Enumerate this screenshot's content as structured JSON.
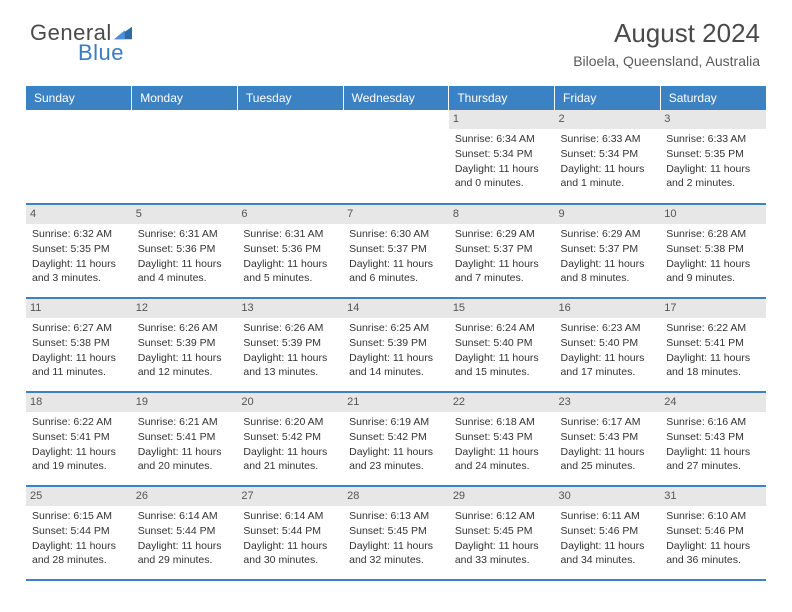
{
  "logo": {
    "textA": "General",
    "textB": "Blue"
  },
  "header": {
    "title": "August 2024",
    "location": "Biloela, Queensland, Australia"
  },
  "colors": {
    "header_bg": "#3b82c4",
    "header_fg": "#ffffff",
    "daynum_bg": "#e7e7e7",
    "rule": "#3b82c4",
    "text": "#333333"
  },
  "fonts": {
    "title_pt": 26,
    "subtitle_pt": 14,
    "th_pt": 12,
    "cell_pt": 10.5
  },
  "dayHeaders": [
    "Sunday",
    "Monday",
    "Tuesday",
    "Wednesday",
    "Thursday",
    "Friday",
    "Saturday"
  ],
  "weeks": [
    [
      {
        "n": "",
        "sr": "",
        "ss": "",
        "dl": ""
      },
      {
        "n": "",
        "sr": "",
        "ss": "",
        "dl": ""
      },
      {
        "n": "",
        "sr": "",
        "ss": "",
        "dl": ""
      },
      {
        "n": "",
        "sr": "",
        "ss": "",
        "dl": ""
      },
      {
        "n": "1",
        "sr": "Sunrise: 6:34 AM",
        "ss": "Sunset: 5:34 PM",
        "dl": "Daylight: 11 hours and 0 minutes."
      },
      {
        "n": "2",
        "sr": "Sunrise: 6:33 AM",
        "ss": "Sunset: 5:34 PM",
        "dl": "Daylight: 11 hours and 1 minute."
      },
      {
        "n": "3",
        "sr": "Sunrise: 6:33 AM",
        "ss": "Sunset: 5:35 PM",
        "dl": "Daylight: 11 hours and 2 minutes."
      }
    ],
    [
      {
        "n": "4",
        "sr": "Sunrise: 6:32 AM",
        "ss": "Sunset: 5:35 PM",
        "dl": "Daylight: 11 hours and 3 minutes."
      },
      {
        "n": "5",
        "sr": "Sunrise: 6:31 AM",
        "ss": "Sunset: 5:36 PM",
        "dl": "Daylight: 11 hours and 4 minutes."
      },
      {
        "n": "6",
        "sr": "Sunrise: 6:31 AM",
        "ss": "Sunset: 5:36 PM",
        "dl": "Daylight: 11 hours and 5 minutes."
      },
      {
        "n": "7",
        "sr": "Sunrise: 6:30 AM",
        "ss": "Sunset: 5:37 PM",
        "dl": "Daylight: 11 hours and 6 minutes."
      },
      {
        "n": "8",
        "sr": "Sunrise: 6:29 AM",
        "ss": "Sunset: 5:37 PM",
        "dl": "Daylight: 11 hours and 7 minutes."
      },
      {
        "n": "9",
        "sr": "Sunrise: 6:29 AM",
        "ss": "Sunset: 5:37 PM",
        "dl": "Daylight: 11 hours and 8 minutes."
      },
      {
        "n": "10",
        "sr": "Sunrise: 6:28 AM",
        "ss": "Sunset: 5:38 PM",
        "dl": "Daylight: 11 hours and 9 minutes."
      }
    ],
    [
      {
        "n": "11",
        "sr": "Sunrise: 6:27 AM",
        "ss": "Sunset: 5:38 PM",
        "dl": "Daylight: 11 hours and 11 minutes."
      },
      {
        "n": "12",
        "sr": "Sunrise: 6:26 AM",
        "ss": "Sunset: 5:39 PM",
        "dl": "Daylight: 11 hours and 12 minutes."
      },
      {
        "n": "13",
        "sr": "Sunrise: 6:26 AM",
        "ss": "Sunset: 5:39 PM",
        "dl": "Daylight: 11 hours and 13 minutes."
      },
      {
        "n": "14",
        "sr": "Sunrise: 6:25 AM",
        "ss": "Sunset: 5:39 PM",
        "dl": "Daylight: 11 hours and 14 minutes."
      },
      {
        "n": "15",
        "sr": "Sunrise: 6:24 AM",
        "ss": "Sunset: 5:40 PM",
        "dl": "Daylight: 11 hours and 15 minutes."
      },
      {
        "n": "16",
        "sr": "Sunrise: 6:23 AM",
        "ss": "Sunset: 5:40 PM",
        "dl": "Daylight: 11 hours and 17 minutes."
      },
      {
        "n": "17",
        "sr": "Sunrise: 6:22 AM",
        "ss": "Sunset: 5:41 PM",
        "dl": "Daylight: 11 hours and 18 minutes."
      }
    ],
    [
      {
        "n": "18",
        "sr": "Sunrise: 6:22 AM",
        "ss": "Sunset: 5:41 PM",
        "dl": "Daylight: 11 hours and 19 minutes."
      },
      {
        "n": "19",
        "sr": "Sunrise: 6:21 AM",
        "ss": "Sunset: 5:41 PM",
        "dl": "Daylight: 11 hours and 20 minutes."
      },
      {
        "n": "20",
        "sr": "Sunrise: 6:20 AM",
        "ss": "Sunset: 5:42 PM",
        "dl": "Daylight: 11 hours and 21 minutes."
      },
      {
        "n": "21",
        "sr": "Sunrise: 6:19 AM",
        "ss": "Sunset: 5:42 PM",
        "dl": "Daylight: 11 hours and 23 minutes."
      },
      {
        "n": "22",
        "sr": "Sunrise: 6:18 AM",
        "ss": "Sunset: 5:43 PM",
        "dl": "Daylight: 11 hours and 24 minutes."
      },
      {
        "n": "23",
        "sr": "Sunrise: 6:17 AM",
        "ss": "Sunset: 5:43 PM",
        "dl": "Daylight: 11 hours and 25 minutes."
      },
      {
        "n": "24",
        "sr": "Sunrise: 6:16 AM",
        "ss": "Sunset: 5:43 PM",
        "dl": "Daylight: 11 hours and 27 minutes."
      }
    ],
    [
      {
        "n": "25",
        "sr": "Sunrise: 6:15 AM",
        "ss": "Sunset: 5:44 PM",
        "dl": "Daylight: 11 hours and 28 minutes."
      },
      {
        "n": "26",
        "sr": "Sunrise: 6:14 AM",
        "ss": "Sunset: 5:44 PM",
        "dl": "Daylight: 11 hours and 29 minutes."
      },
      {
        "n": "27",
        "sr": "Sunrise: 6:14 AM",
        "ss": "Sunset: 5:44 PM",
        "dl": "Daylight: 11 hours and 30 minutes."
      },
      {
        "n": "28",
        "sr": "Sunrise: 6:13 AM",
        "ss": "Sunset: 5:45 PM",
        "dl": "Daylight: 11 hours and 32 minutes."
      },
      {
        "n": "29",
        "sr": "Sunrise: 6:12 AM",
        "ss": "Sunset: 5:45 PM",
        "dl": "Daylight: 11 hours and 33 minutes."
      },
      {
        "n": "30",
        "sr": "Sunrise: 6:11 AM",
        "ss": "Sunset: 5:46 PM",
        "dl": "Daylight: 11 hours and 34 minutes."
      },
      {
        "n": "31",
        "sr": "Sunrise: 6:10 AM",
        "ss": "Sunset: 5:46 PM",
        "dl": "Daylight: 11 hours and 36 minutes."
      }
    ]
  ]
}
